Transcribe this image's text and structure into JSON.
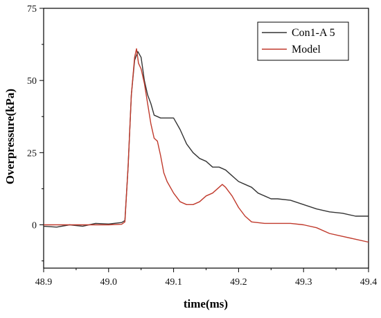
{
  "chart_data": {
    "type": "line",
    "title": "",
    "xlabel": "time(ms)",
    "ylabel": "Overpressure(kPa)",
    "xlim": [
      48.9,
      49.4
    ],
    "ylim": [
      -15,
      75
    ],
    "x_ticks": [
      48.9,
      49.0,
      49.1,
      49.2,
      49.3,
      49.4
    ],
    "x_tick_labels": [
      "48.9",
      "49.0",
      "49.1",
      "49.2",
      "49.3",
      "49.4"
    ],
    "y_ticks": [
      0,
      25,
      50,
      75
    ],
    "y_tick_labels": [
      "0",
      "25",
      "50",
      "75"
    ],
    "grid": false,
    "legend_position": "top-right",
    "series": [
      {
        "name": "Con1-A 5",
        "color": "#333333",
        "x": [
          48.9,
          48.92,
          48.94,
          48.96,
          48.98,
          49.0,
          49.02,
          49.025,
          49.03,
          49.035,
          49.04,
          49.045,
          49.05,
          49.055,
          49.06,
          49.065,
          49.07,
          49.08,
          49.09,
          49.1,
          49.11,
          49.12,
          49.13,
          49.14,
          49.15,
          49.16,
          49.17,
          49.18,
          49.19,
          49.2,
          49.21,
          49.22,
          49.23,
          49.24,
          49.25,
          49.26,
          49.28,
          49.3,
          49.32,
          49.34,
          49.36,
          49.38,
          49.4
        ],
        "y": [
          -0.5,
          -0.8,
          0,
          -0.5,
          0.5,
          0.3,
          0.8,
          1.5,
          20,
          45,
          57,
          60,
          58,
          50,
          45,
          42,
          38,
          37,
          37,
          37,
          33,
          28,
          25,
          23,
          22,
          20,
          20,
          19,
          17,
          15,
          14,
          13,
          11,
          10,
          9,
          9,
          8.5,
          7,
          5.5,
          4.5,
          4,
          3,
          3
        ]
      },
      {
        "name": "Model",
        "color": "#c0392b",
        "x": [
          48.9,
          48.95,
          49.0,
          49.02,
          49.025,
          49.03,
          49.035,
          49.04,
          49.043,
          49.046,
          49.05,
          49.055,
          49.06,
          49.065,
          49.07,
          49.075,
          49.08,
          49.085,
          49.09,
          49.1,
          49.11,
          49.12,
          49.13,
          49.14,
          49.15,
          49.16,
          49.17,
          49.175,
          49.18,
          49.19,
          49.2,
          49.21,
          49.22,
          49.24,
          49.26,
          49.28,
          49.3,
          49.32,
          49.34,
          49.36,
          49.38,
          49.4
        ],
        "y": [
          0,
          0,
          0,
          0.2,
          1,
          20,
          45,
          58,
          61,
          56,
          54,
          49,
          42,
          35,
          30,
          29,
          24,
          18,
          15,
          11,
          8,
          7,
          7,
          8,
          10,
          11,
          13,
          14,
          13,
          10,
          6,
          3,
          1,
          0.5,
          0.5,
          0.5,
          0,
          -1,
          -3,
          -4,
          -5,
          -6
        ]
      }
    ]
  }
}
